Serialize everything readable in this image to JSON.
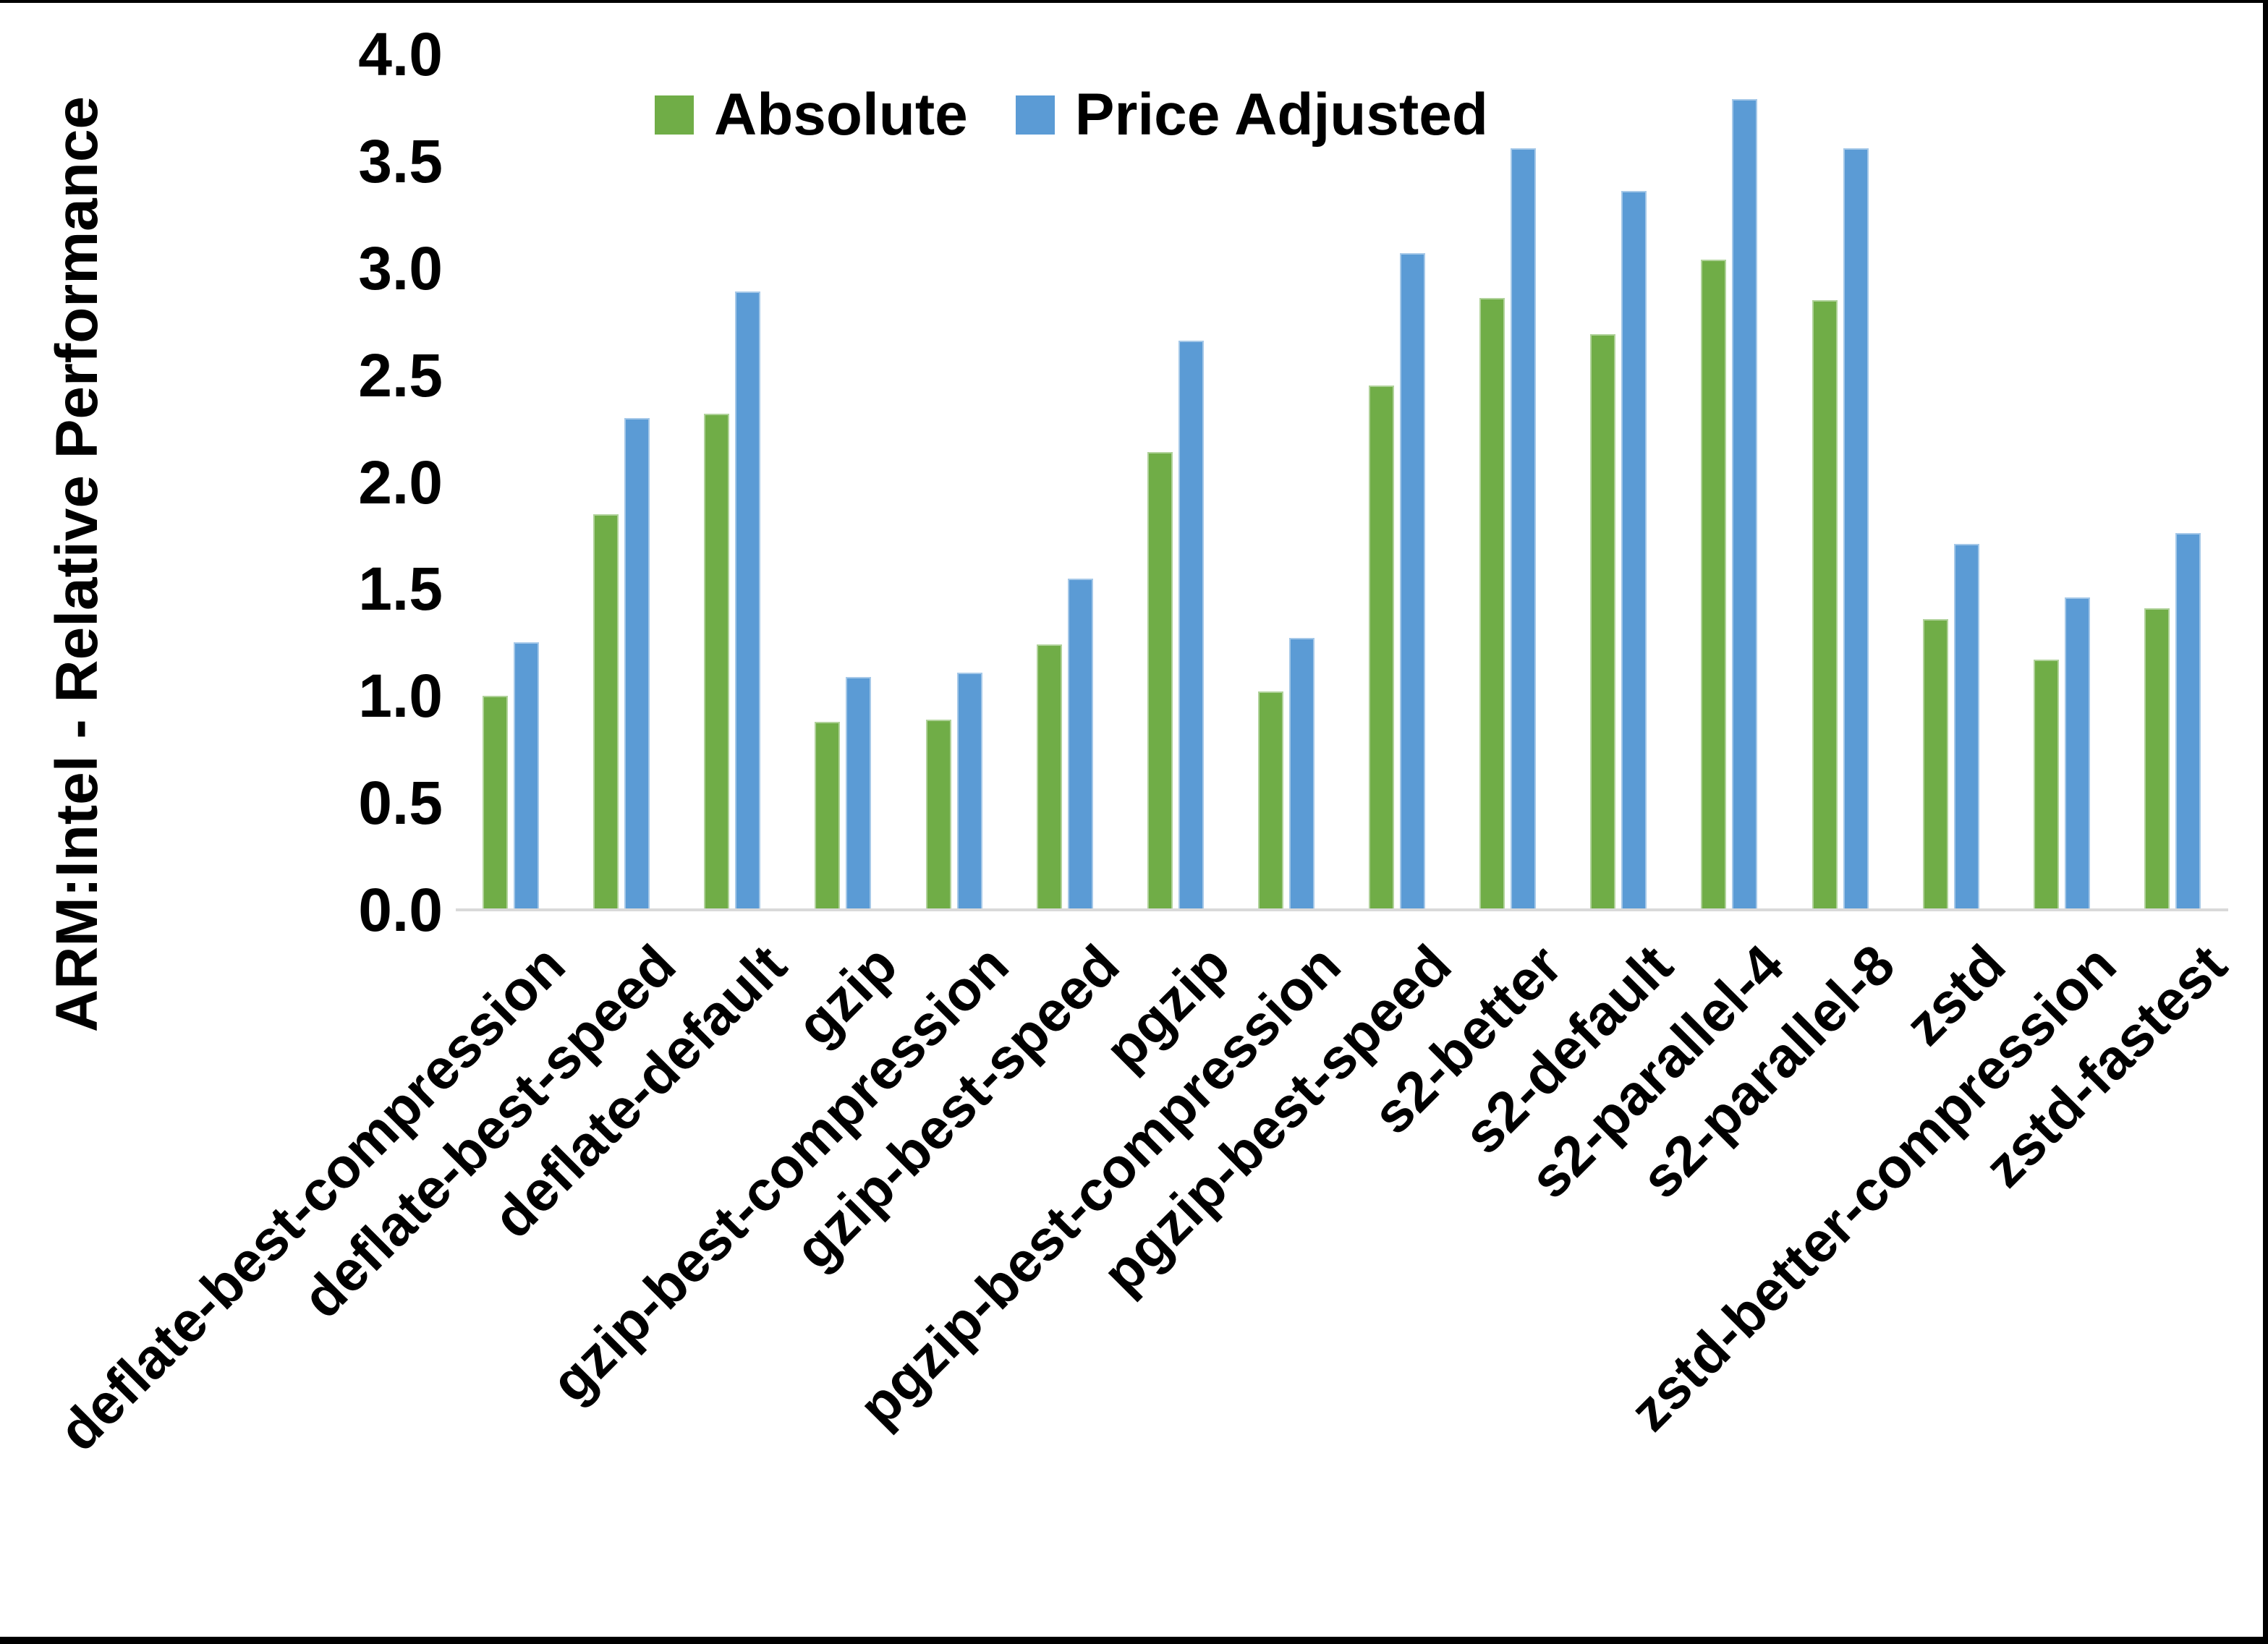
{
  "chart_data": {
    "type": "bar",
    "title": "",
    "ylabel": "ARM:Intel - Relative Performance",
    "xlabel": "",
    "ylim": [
      0.0,
      4.0
    ],
    "ytick_labels": [
      "0.0",
      "0.5",
      "1.0",
      "1.5",
      "2.0",
      "2.5",
      "3.0",
      "3.5",
      "4.0"
    ],
    "ytick_values": [
      0,
      0.5,
      1.0,
      1.5,
      2.0,
      2.5,
      3.0,
      3.5,
      4.0
    ],
    "grid": "off",
    "legend_position": "top",
    "categories": [
      "deflate-best-compression",
      "deflate-best-speed",
      "deflate-default",
      "gzip",
      "gzip-best-compression",
      "gzip-best-speed",
      "pgzip",
      "pgzip-best-compression",
      "pgzip-best-speed",
      "s2-better",
      "s2-default",
      "s2-parallel-4",
      "s2-parallel-8",
      "zstd",
      "zstd-better-compression",
      "zstd-fastest"
    ],
    "series": [
      {
        "name": "Absolute",
        "color": "#70AD47",
        "values": [
          1.0,
          1.85,
          2.32,
          0.88,
          0.89,
          1.24,
          2.14,
          1.02,
          2.45,
          2.86,
          2.69,
          3.04,
          2.85,
          1.36,
          1.17,
          1.41
        ]
      },
      {
        "name": "Price Adjusted",
        "color": "#5B9BD5",
        "values": [
          1.25,
          2.3,
          2.89,
          1.09,
          1.11,
          1.55,
          2.66,
          1.27,
          3.07,
          3.56,
          3.36,
          3.79,
          3.56,
          1.71,
          1.46,
          1.76
        ]
      }
    ],
    "axis_line_color": "#D9D9D9",
    "frame_color": "#000000"
  }
}
